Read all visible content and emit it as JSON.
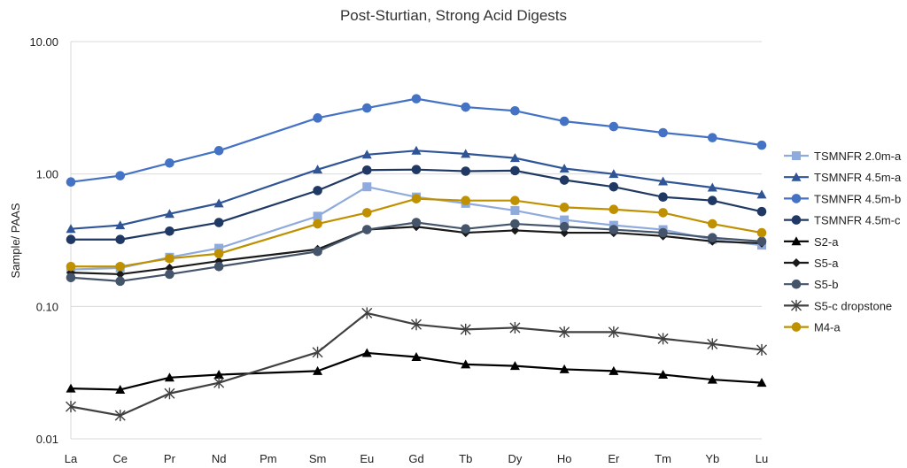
{
  "chart_data": {
    "type": "line",
    "title": "Post-Sturtian, Strong Acid Digests",
    "xlabel": "",
    "ylabel": "Sample/ PAAS",
    "yscale": "log",
    "ylim": [
      0.01,
      10
    ],
    "yticks": [
      "0.01",
      "0.10",
      "1.00",
      "10.00"
    ],
    "grid": "horizontal major gridlines",
    "legend_position": "right",
    "categories": [
      "La",
      "Ce",
      "Pr",
      "Nd",
      "Pm",
      "Sm",
      "Eu",
      "Gd",
      "Tb",
      "Dy",
      "Ho",
      "Er",
      "Tm",
      "Yb",
      "Lu"
    ],
    "series": [
      {
        "name": "TSMNFR 2.0m-a",
        "color": "#8faadc",
        "marker": "square",
        "values": [
          0.19,
          0.195,
          0.235,
          0.275,
          null,
          0.48,
          0.8,
          0.67,
          0.6,
          0.53,
          0.45,
          0.41,
          0.38,
          0.32,
          0.29
        ]
      },
      {
        "name": "TSMNFR 4.5m-a",
        "color": "#2f5597",
        "marker": "triangle",
        "values": [
          0.385,
          0.41,
          0.5,
          0.6,
          null,
          1.08,
          1.4,
          1.5,
          1.42,
          1.32,
          1.1,
          1.0,
          0.88,
          0.79,
          0.7
        ]
      },
      {
        "name": "TSMNFR 4.5m-b",
        "color": "#4472c4",
        "marker": "circle",
        "values": [
          0.87,
          0.97,
          1.21,
          1.5,
          null,
          2.65,
          3.15,
          3.7,
          3.2,
          3.0,
          2.5,
          2.28,
          2.05,
          1.88,
          1.65
        ]
      },
      {
        "name": "TSMNFR 4.5m-c",
        "color": "#1f3864",
        "marker": "circle",
        "values": [
          0.32,
          0.32,
          0.37,
          0.43,
          null,
          0.75,
          1.07,
          1.08,
          1.05,
          1.06,
          0.9,
          0.8,
          0.67,
          0.63,
          0.52
        ]
      },
      {
        "name": "S2-a",
        "color": "#000000",
        "marker": "triangle",
        "values": [
          0.024,
          0.0235,
          0.029,
          0.0305,
          null,
          0.0325,
          0.0445,
          0.0415,
          0.0365,
          0.0355,
          0.0335,
          0.0325,
          0.0305,
          0.028,
          0.0265
        ]
      },
      {
        "name": "S5-a",
        "color": "#1a1a1a",
        "marker": "diamond",
        "values": [
          0.18,
          0.175,
          0.195,
          0.22,
          null,
          0.27,
          0.38,
          0.4,
          0.36,
          0.375,
          0.36,
          0.36,
          0.34,
          0.31,
          0.3
        ]
      },
      {
        "name": "S5-b",
        "color": "#44546a",
        "marker": "circle",
        "values": [
          0.165,
          0.155,
          0.175,
          0.2,
          null,
          0.26,
          0.38,
          0.43,
          0.385,
          0.42,
          0.4,
          0.38,
          0.36,
          0.33,
          0.31
        ]
      },
      {
        "name": "S5-c dropstone",
        "color": "#404040",
        "marker": "star",
        "values": [
          0.0175,
          0.015,
          0.022,
          0.0265,
          null,
          0.045,
          0.089,
          0.073,
          0.067,
          0.069,
          0.064,
          0.064,
          0.057,
          0.052,
          0.047
        ]
      },
      {
        "name": "M4-a",
        "color": "#bf9000",
        "marker": "circle",
        "values": [
          0.2,
          0.2,
          0.23,
          0.25,
          null,
          0.42,
          0.51,
          0.65,
          0.63,
          0.63,
          0.56,
          0.54,
          0.51,
          0.42,
          0.36
        ]
      }
    ]
  }
}
